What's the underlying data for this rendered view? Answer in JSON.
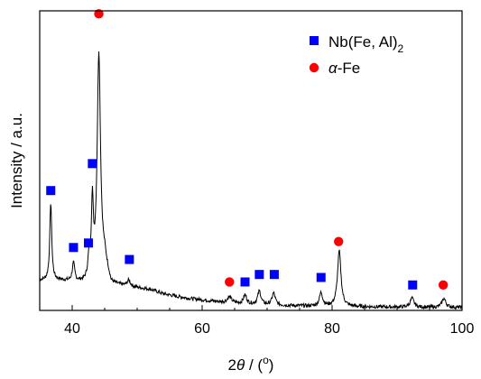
{
  "chart_data": {
    "type": "line",
    "title": "",
    "xlabel": "2θ / (°)",
    "xlabel_parts": {
      "prefix": "2",
      "theta": "θ",
      "rest": " / (",
      "degree": "o",
      "close": ")"
    },
    "ylabel": "Intensity / a.u.",
    "xlim": [
      35,
      100
    ],
    "ylim": [
      0,
      1
    ],
    "x_ticks": [
      40,
      60,
      80,
      100
    ],
    "y_ticks_shown": false,
    "grid": false,
    "legend_position": "top-right",
    "legend": [
      {
        "name_main": "Nb(Fe, Al)",
        "name_sub": "2",
        "marker": "square",
        "color": "#0000ff"
      },
      {
        "name_italic": "α",
        "name_rest": "-Fe",
        "marker": "circle",
        "color": "#ff0000"
      }
    ],
    "series": [
      {
        "color": "#000000",
        "background": [
          [
            35,
            0.1
          ],
          [
            36,
            0.1
          ],
          [
            38,
            0.1
          ],
          [
            40,
            0.095
          ],
          [
            42,
            0.09
          ],
          [
            43,
            0.09
          ],
          [
            45,
            0.16
          ],
          [
            46,
            0.085
          ],
          [
            48,
            0.08
          ],
          [
            50,
            0.075
          ],
          [
            52,
            0.07
          ],
          [
            54,
            0.055
          ],
          [
            56,
            0.047
          ],
          [
            58,
            0.04
          ],
          [
            60,
            0.035
          ],
          [
            62,
            0.03
          ],
          [
            64,
            0.025
          ],
          [
            66,
            0.022
          ],
          [
            68,
            0.02
          ],
          [
            70,
            0.018
          ],
          [
            75,
            0.015
          ],
          [
            80,
            0.013
          ],
          [
            85,
            0.012
          ],
          [
            90,
            0.011
          ],
          [
            95,
            0.01
          ],
          [
            100,
            0.01
          ]
        ],
        "peaks": [
          {
            "x": 36.7,
            "h": 0.26,
            "w": 0.18
          },
          {
            "x": 40.2,
            "h": 0.06,
            "w": 0.22
          },
          {
            "x": 42.6,
            "h": 0.07,
            "w": 0.22
          },
          {
            "x": 43.1,
            "h": 0.25,
            "w": 0.18
          },
          {
            "x": 44.1,
            "h": 0.73,
            "w": 0.3
          },
          {
            "x": 48.7,
            "h": 0.02,
            "w": 0.3
          },
          {
            "x": 64.2,
            "h": 0.02,
            "w": 0.4
          },
          {
            "x": 66.6,
            "h": 0.03,
            "w": 0.3
          },
          {
            "x": 68.8,
            "h": 0.045,
            "w": 0.3
          },
          {
            "x": 71.0,
            "h": 0.04,
            "w": 0.3
          },
          {
            "x": 78.3,
            "h": 0.045,
            "w": 0.3
          },
          {
            "x": 81.1,
            "h": 0.185,
            "w": 0.32
          },
          {
            "x": 92.3,
            "h": 0.03,
            "w": 0.35
          },
          {
            "x": 97.2,
            "h": 0.03,
            "w": 0.35
          }
        ]
      }
    ],
    "markers": [
      {
        "phase": "Nb(Fe, Al)2",
        "shape": "square",
        "color": "#0000ff",
        "x": 36.7,
        "y": 0.4
      },
      {
        "phase": "Nb(Fe, Al)2",
        "shape": "square",
        "color": "#0000ff",
        "x": 40.2,
        "y": 0.21
      },
      {
        "phase": "Nb(Fe, Al)2",
        "shape": "square",
        "color": "#0000ff",
        "x": 42.5,
        "y": 0.225
      },
      {
        "phase": "Nb(Fe, Al)2",
        "shape": "square",
        "color": "#0000ff",
        "x": 43.1,
        "y": 0.49
      },
      {
        "phase": "Nb(Fe, Al)2",
        "shape": "square",
        "color": "#0000ff",
        "x": 48.8,
        "y": 0.17
      },
      {
        "phase": "Nb(Fe, Al)2",
        "shape": "square",
        "color": "#0000ff",
        "x": 66.6,
        "y": 0.095
      },
      {
        "phase": "Nb(Fe, Al)2",
        "shape": "square",
        "color": "#0000ff",
        "x": 68.8,
        "y": 0.12
      },
      {
        "phase": "Nb(Fe, Al)2",
        "shape": "square",
        "color": "#0000ff",
        "x": 71.1,
        "y": 0.12
      },
      {
        "phase": "Nb(Fe, Al)2",
        "shape": "square",
        "color": "#0000ff",
        "x": 78.3,
        "y": 0.11
      },
      {
        "phase": "Nb(Fe, Al)2",
        "shape": "square",
        "color": "#0000ff",
        "x": 92.4,
        "y": 0.085
      },
      {
        "phase": "α-Fe",
        "shape": "circle",
        "color": "#ff0000",
        "x": 44.1,
        "y": 0.99
      },
      {
        "phase": "α-Fe",
        "shape": "circle",
        "color": "#ff0000",
        "x": 64.2,
        "y": 0.095
      },
      {
        "phase": "α-Fe",
        "shape": "circle",
        "color": "#ff0000",
        "x": 81.0,
        "y": 0.23
      },
      {
        "phase": "α-Fe",
        "shape": "circle",
        "color": "#ff0000",
        "x": 97.1,
        "y": 0.085
      }
    ]
  }
}
